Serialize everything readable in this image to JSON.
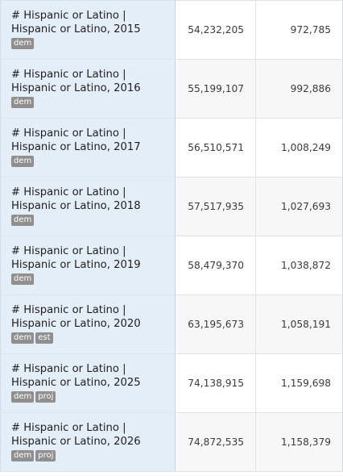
{
  "rows": [
    {
      "label_line1": "# Hispanic or Latino |",
      "label_line2": "Hispanic or Latino, 2015",
      "tags": [
        "dem"
      ],
      "value1": "54,232,205",
      "value2": "972,785"
    },
    {
      "label_line1": "# Hispanic or Latino |",
      "label_line2": "Hispanic or Latino, 2016",
      "tags": [
        "dem"
      ],
      "value1": "55,199,107",
      "value2": "992,886"
    },
    {
      "label_line1": "# Hispanic or Latino |",
      "label_line2": "Hispanic or Latino, 2017",
      "tags": [
        "dem"
      ],
      "value1": "56,510,571",
      "value2": "1,008,249"
    },
    {
      "label_line1": "# Hispanic or Latino |",
      "label_line2": "Hispanic or Latino, 2018",
      "tags": [
        "dem"
      ],
      "value1": "57,517,935",
      "value2": "1,027,693"
    },
    {
      "label_line1": "# Hispanic or Latino |",
      "label_line2": "Hispanic or Latino, 2019",
      "tags": [
        "dem"
      ],
      "value1": "58,479,370",
      "value2": "1,038,872"
    },
    {
      "label_line1": "# Hispanic or Latino |",
      "label_line2": "Hispanic or Latino, 2020",
      "tags": [
        "dem",
        "est"
      ],
      "value1": "63,195,673",
      "value2": "1,058,191"
    },
    {
      "label_line1": "# Hispanic or Latino |",
      "label_line2": "Hispanic or Latino, 2025",
      "tags": [
        "dem",
        "proj"
      ],
      "value1": "74,138,915",
      "value2": "1,159,698"
    },
    {
      "label_line1": "# Hispanic or Latino |",
      "label_line2": "Hispanic or Latino, 2026",
      "tags": [
        "dem",
        "proj"
      ],
      "value1": "74,872,535",
      "value2": "1,158,379"
    }
  ]
}
